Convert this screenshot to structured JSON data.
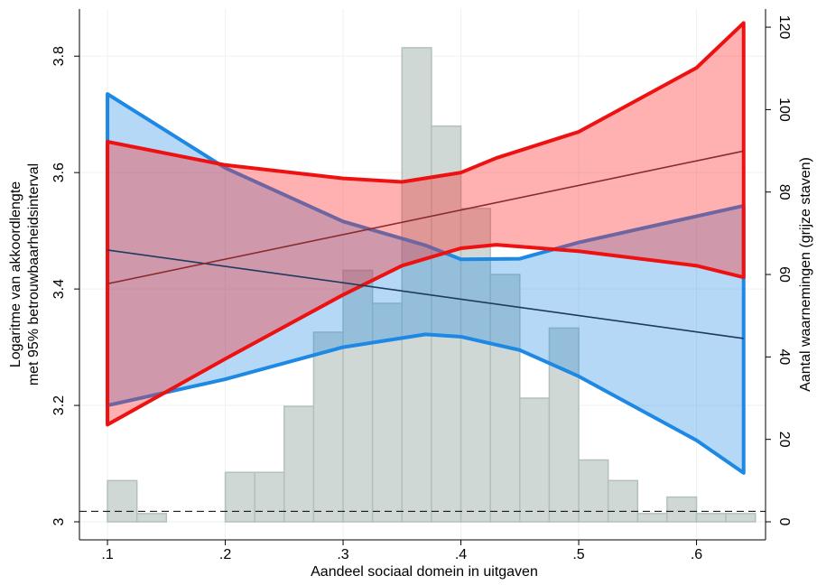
{
  "chart_data": {
    "type": "line",
    "xlabel": "Aandeel sociaal domein in uitgaven",
    "ylabel": [
      "Logaritme van akkoordlengte",
      "met 95% betrouwbaarheidsinterval"
    ],
    "y2label": "Aantal waarnemingen (grijze staven)",
    "xlim": [
      0.0762,
      0.6586
    ],
    "xticks": [
      {
        "value": 0.1,
        "label": ".1"
      },
      {
        "value": 0.2,
        "label": ".2"
      },
      {
        "value": 0.3,
        "label": ".3"
      },
      {
        "value": 0.4,
        "label": ".4"
      },
      {
        "value": 0.5,
        "label": ".5"
      },
      {
        "value": 0.6,
        "label": ".6"
      }
    ],
    "ylim": [
      2.969,
      3.881
    ],
    "yticks": [
      3,
      3.2,
      3.4,
      3.6,
      3.8
    ],
    "y2lim": [
      -4.38,
      124.4
    ],
    "y2ticks": [
      0,
      20,
      40,
      60,
      80,
      100,
      120
    ],
    "grid": true,
    "histogram": {
      "axis": "y2",
      "color": "#cfd8d5",
      "edge": "#b3c0bb",
      "bins": [
        0.1,
        0.125,
        0.15,
        0.175,
        0.2,
        0.225,
        0.25,
        0.275,
        0.3,
        0.325,
        0.35,
        0.375,
        0.4,
        0.425,
        0.45,
        0.475,
        0.5,
        0.525,
        0.55,
        0.575,
        0.6,
        0.625,
        0.65
      ],
      "counts": [
        10,
        2,
        0,
        0,
        12,
        12,
        28,
        46,
        61,
        53,
        115,
        96,
        76,
        60,
        30,
        47,
        15,
        10,
        2,
        6,
        2,
        2
      ]
    },
    "hline": 3.018,
    "bands": [
      {
        "color": "#1e88e5",
        "fill": "rgba(30,136,229,0.33)",
        "x": [
          0.1,
          0.2,
          0.3,
          0.37,
          0.4,
          0.45,
          0.5,
          0.6,
          0.64
        ],
        "upper": [
          3.735,
          3.608,
          3.516,
          3.475,
          3.451,
          3.452,
          3.48,
          3.525,
          3.543
        ],
        "lower": [
          3.2,
          3.245,
          3.3,
          3.322,
          3.318,
          3.295,
          3.25,
          3.14,
          3.084
        ]
      },
      {
        "color": "#ee1111",
        "fill": "rgba(255,40,40,0.36)",
        "x": [
          0.1,
          0.2,
          0.3,
          0.35,
          0.4,
          0.43,
          0.5,
          0.6,
          0.64
        ],
        "upper": [
          3.653,
          3.613,
          3.59,
          3.584,
          3.6,
          3.625,
          3.67,
          3.78,
          3.857
        ],
        "lower": [
          3.167,
          3.28,
          3.39,
          3.44,
          3.47,
          3.476,
          3.465,
          3.44,
          3.42
        ]
      }
    ],
    "lines": [
      {
        "color": "#1f3a5f",
        "x": [
          0.1,
          0.64
        ],
        "values": [
          3.467,
          3.315
        ]
      },
      {
        "color": "#8b2c2c",
        "x": [
          0.1,
          0.64
        ],
        "values": [
          3.409,
          3.637
        ]
      }
    ]
  }
}
